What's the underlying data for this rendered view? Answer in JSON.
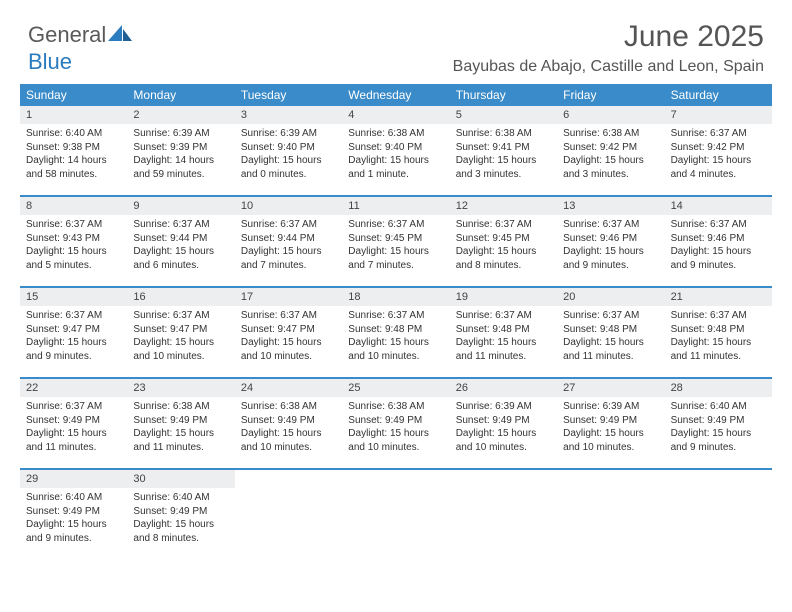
{
  "brand": {
    "line1": "General",
    "line2": "Blue"
  },
  "title": "June 2025",
  "subtitle": "Bayubas de Abajo, Castille and Leon, Spain",
  "colors": {
    "accent": "#3a8bc9",
    "header_text": "#ffffff",
    "daynum_bg": "#eceeef",
    "body_text": "#333333",
    "title_text": "#555555"
  },
  "weekdays": [
    "Sunday",
    "Monday",
    "Tuesday",
    "Wednesday",
    "Thursday",
    "Friday",
    "Saturday"
  ],
  "weeks": [
    [
      {
        "n": "1",
        "sr": "6:40 AM",
        "ss": "9:38 PM",
        "dl": "14 hours and 58 minutes."
      },
      {
        "n": "2",
        "sr": "6:39 AM",
        "ss": "9:39 PM",
        "dl": "14 hours and 59 minutes."
      },
      {
        "n": "3",
        "sr": "6:39 AM",
        "ss": "9:40 PM",
        "dl": "15 hours and 0 minutes."
      },
      {
        "n": "4",
        "sr": "6:38 AM",
        "ss": "9:40 PM",
        "dl": "15 hours and 1 minute."
      },
      {
        "n": "5",
        "sr": "6:38 AM",
        "ss": "9:41 PM",
        "dl": "15 hours and 3 minutes."
      },
      {
        "n": "6",
        "sr": "6:38 AM",
        "ss": "9:42 PM",
        "dl": "15 hours and 3 minutes."
      },
      {
        "n": "7",
        "sr": "6:37 AM",
        "ss": "9:42 PM",
        "dl": "15 hours and 4 minutes."
      }
    ],
    [
      {
        "n": "8",
        "sr": "6:37 AM",
        "ss": "9:43 PM",
        "dl": "15 hours and 5 minutes."
      },
      {
        "n": "9",
        "sr": "6:37 AM",
        "ss": "9:44 PM",
        "dl": "15 hours and 6 minutes."
      },
      {
        "n": "10",
        "sr": "6:37 AM",
        "ss": "9:44 PM",
        "dl": "15 hours and 7 minutes."
      },
      {
        "n": "11",
        "sr": "6:37 AM",
        "ss": "9:45 PM",
        "dl": "15 hours and 7 minutes."
      },
      {
        "n": "12",
        "sr": "6:37 AM",
        "ss": "9:45 PM",
        "dl": "15 hours and 8 minutes."
      },
      {
        "n": "13",
        "sr": "6:37 AM",
        "ss": "9:46 PM",
        "dl": "15 hours and 9 minutes."
      },
      {
        "n": "14",
        "sr": "6:37 AM",
        "ss": "9:46 PM",
        "dl": "15 hours and 9 minutes."
      }
    ],
    [
      {
        "n": "15",
        "sr": "6:37 AM",
        "ss": "9:47 PM",
        "dl": "15 hours and 9 minutes."
      },
      {
        "n": "16",
        "sr": "6:37 AM",
        "ss": "9:47 PM",
        "dl": "15 hours and 10 minutes."
      },
      {
        "n": "17",
        "sr": "6:37 AM",
        "ss": "9:47 PM",
        "dl": "15 hours and 10 minutes."
      },
      {
        "n": "18",
        "sr": "6:37 AM",
        "ss": "9:48 PM",
        "dl": "15 hours and 10 minutes."
      },
      {
        "n": "19",
        "sr": "6:37 AM",
        "ss": "9:48 PM",
        "dl": "15 hours and 11 minutes."
      },
      {
        "n": "20",
        "sr": "6:37 AM",
        "ss": "9:48 PM",
        "dl": "15 hours and 11 minutes."
      },
      {
        "n": "21",
        "sr": "6:37 AM",
        "ss": "9:48 PM",
        "dl": "15 hours and 11 minutes."
      }
    ],
    [
      {
        "n": "22",
        "sr": "6:37 AM",
        "ss": "9:49 PM",
        "dl": "15 hours and 11 minutes."
      },
      {
        "n": "23",
        "sr": "6:38 AM",
        "ss": "9:49 PM",
        "dl": "15 hours and 11 minutes."
      },
      {
        "n": "24",
        "sr": "6:38 AM",
        "ss": "9:49 PM",
        "dl": "15 hours and 10 minutes."
      },
      {
        "n": "25",
        "sr": "6:38 AM",
        "ss": "9:49 PM",
        "dl": "15 hours and 10 minutes."
      },
      {
        "n": "26",
        "sr": "6:39 AM",
        "ss": "9:49 PM",
        "dl": "15 hours and 10 minutes."
      },
      {
        "n": "27",
        "sr": "6:39 AM",
        "ss": "9:49 PM",
        "dl": "15 hours and 10 minutes."
      },
      {
        "n": "28",
        "sr": "6:40 AM",
        "ss": "9:49 PM",
        "dl": "15 hours and 9 minutes."
      }
    ],
    [
      {
        "n": "29",
        "sr": "6:40 AM",
        "ss": "9:49 PM",
        "dl": "15 hours and 9 minutes."
      },
      {
        "n": "30",
        "sr": "6:40 AM",
        "ss": "9:49 PM",
        "dl": "15 hours and 8 minutes."
      },
      null,
      null,
      null,
      null,
      null
    ]
  ],
  "labels": {
    "sunrise": "Sunrise:",
    "sunset": "Sunset:",
    "daylight": "Daylight:"
  }
}
